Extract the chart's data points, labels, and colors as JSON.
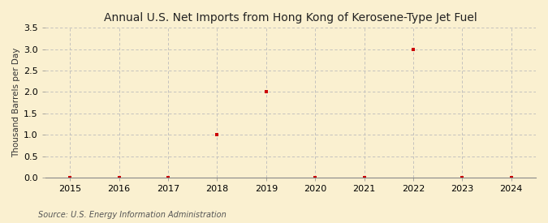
{
  "title": "Annual U.S. Net Imports from Hong Kong of Kerosene-Type Jet Fuel",
  "ylabel": "Thousand Barrels per Day",
  "source": "Source: U.S. Energy Information Administration",
  "bg_color": "#FAF0D0",
  "plot_bg_color": "#FAF0D0",
  "x_data": [
    2015,
    2016,
    2017,
    2018,
    2019,
    2020,
    2021,
    2022,
    2023,
    2024
  ],
  "y_data": [
    0,
    0,
    0,
    1.0,
    2.0,
    0,
    0,
    3.0,
    0,
    0
  ],
  "xlim": [
    2014.5,
    2024.5
  ],
  "ylim": [
    0.0,
    3.5
  ],
  "yticks": [
    0.0,
    0.5,
    1.0,
    1.5,
    2.0,
    2.5,
    3.0,
    3.5
  ],
  "xticks": [
    2015,
    2016,
    2017,
    2018,
    2019,
    2020,
    2021,
    2022,
    2023,
    2024
  ],
  "marker_color": "#CC0000",
  "marker_style": "s",
  "marker_size": 3,
  "title_fontsize": 10,
  "label_fontsize": 7.5,
  "tick_fontsize": 8,
  "source_fontsize": 7
}
